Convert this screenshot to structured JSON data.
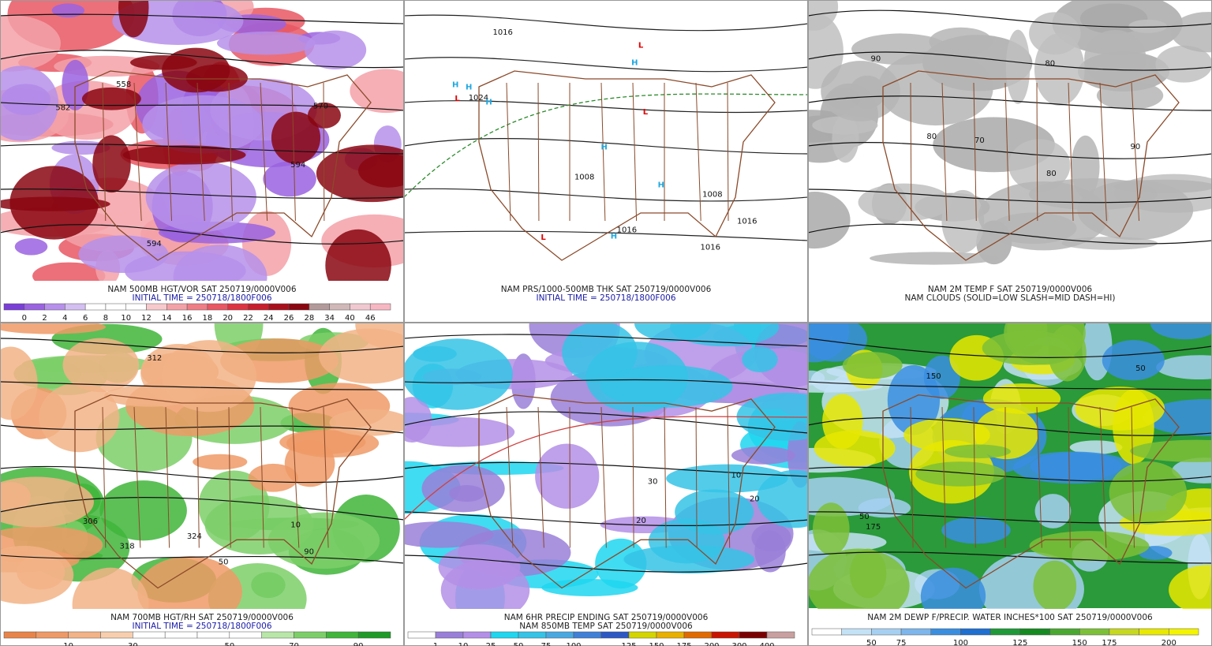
{
  "panels": [
    {
      "title_lines": [
        "NAM 500MB HGT/VOR SAT 250719/0000V006",
        "INITIAL TIME = 250718/1800F006"
      ],
      "map_labels": [
        "570",
        "558",
        "582",
        "594",
        "594"
      ],
      "colorbar": {
        "labels": [
          0,
          2,
          4,
          6,
          8,
          10,
          12,
          14,
          16,
          18,
          20,
          22,
          24,
          26,
          28,
          34,
          40,
          46
        ],
        "colors": [
          "#7a3fd6",
          "#9a63e0",
          "#b690ea",
          "#d3bff2",
          "#ffffff",
          "#ffffff",
          "#ffffff",
          "#f7c9cc",
          "#f3a1a8",
          "#ee7d86",
          "#e85763",
          "#dc3242",
          "#c71d2c",
          "#a8101c",
          "#8a0610",
          "#b39a9a",
          "#d0b8b8",
          "#f0c8d0",
          "#f7b7c2"
        ]
      }
    },
    {
      "title_lines": [
        "NAM PRS/1000-500MB THK SAT 250719/0000V006",
        "INITIAL TIME = 250718/1800F006"
      ],
      "map_labels": [
        "1024",
        "1008",
        "1016",
        "1016",
        "1016",
        "1008",
        "1016",
        "L",
        "L",
        "L",
        "L",
        "H",
        "H",
        "H",
        "H",
        "H",
        "H",
        "H"
      ]
    },
    {
      "title_lines": [
        "NAM 2M TEMP F SAT 250719/0000V006",
        "NAM CLOUDS (SOLID=LOW SLASH=MID DASH=HI)"
      ],
      "map_labels": [
        "70",
        "80",
        "90",
        "80",
        "90",
        "80"
      ]
    },
    {
      "title_lines": [
        "NAM 700MB HGT/RH SAT 250719/0000V006",
        "INITIAL TIME = 250718/1800F006"
      ],
      "map_labels": [
        "306",
        "312",
        "318",
        "324",
        "50",
        "90",
        "10"
      ],
      "colorbar": {
        "labels": [
          10,
          30,
          50,
          70,
          90
        ],
        "colors": [
          "#e8844a",
          "#ee9a66",
          "#f2b386",
          "#f7cfae",
          "#ffffff",
          "#ffffff",
          "#ffffff",
          "#ffffff",
          "#b8e6a8",
          "#7ccf68",
          "#3fb53a",
          "#1f9a26"
        ]
      }
    },
    {
      "title_lines": [
        "NAM 6HR PRECIP ENDING SAT 250719/0000V006",
        "NAM 850MB TEMP SAT 250719/0000V006"
      ],
      "map_labels": [
        "20",
        "20",
        "30",
        "10"
      ],
      "colorbar": {
        "labels": [
          1,
          10,
          25,
          50,
          75,
          100,
          125,
          150,
          175,
          200,
          300,
          400
        ],
        "colors": [
          "#ffffff",
          "#9a7fd8",
          "#b48fe6",
          "#1fd6f0",
          "#35c3e6",
          "#4aa8e0",
          "#3f7fd6",
          "#2d58c4",
          "#d4d400",
          "#e8b000",
          "#e06a00",
          "#c81400",
          "#7a0000",
          "#c8a0a0"
        ]
      }
    },
    {
      "title_lines": [
        "NAM 2M DEWP F/PRECIP. WATER INCHES*100 SAT 250719/0000V006"
      ],
      "map_labels": [
        "50",
        "50",
        "150",
        "175"
      ],
      "colorbar": {
        "labels": [
          50,
          75,
          100,
          125,
          150,
          175,
          200
        ],
        "colors": [
          "#ffffff",
          "#c4e2f6",
          "#a6d0f2",
          "#7cb6ec",
          "#3a8ee0",
          "#1f6fd0",
          "#1f9a38",
          "#158a20",
          "#4aa830",
          "#7cc038",
          "#c6d820",
          "#e8e800",
          "#f4f400"
        ]
      }
    }
  ]
}
